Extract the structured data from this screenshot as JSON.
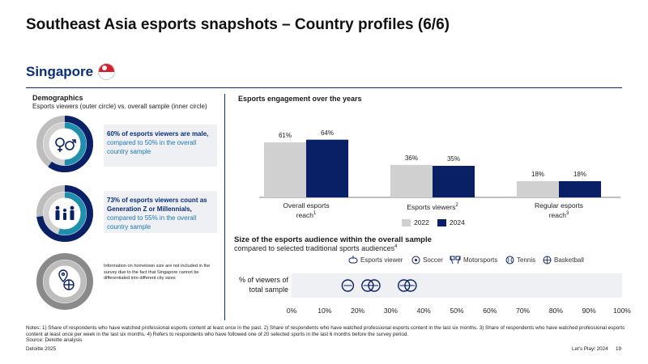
{
  "title": "Southeast Asia esports snapshots – Country profiles (6/6)",
  "country": "Singapore",
  "demographics": {
    "heading": "Demographics",
    "subheading": "Esports viewers (outer circle) vs. overall sample (inner circle)",
    "card1": {
      "bold": "60% of esports viewers are male,",
      "rest": " compared to 50% in the overall country sample",
      "outer": 0.6,
      "inner": 0.5
    },
    "card2": {
      "bold": "73% of esports viewers count as Generation Z or Millennials,",
      "rest": " compared to 55% in the overall country sample",
      "outer": 0.73,
      "inner": 0.55
    },
    "card3": {
      "text": "Information on hometown size are not included in the survey due to the fact that Singapore cannot be differentiated into different city sizes"
    }
  },
  "engagement": {
    "heading": "Esports engagement over the years",
    "chart_data": {
      "type": "bar",
      "categories": [
        "Overall esports reach",
        "Esports viewers",
        "Regular esports reach"
      ],
      "category_sup": [
        "1",
        "2",
        "3"
      ],
      "series": [
        {
          "name": "2022",
          "values": [
            61,
            36,
            18
          ]
        },
        {
          "name": "2024",
          "values": [
            64,
            35,
            18
          ]
        }
      ],
      "value_labels": [
        [
          "61%",
          "36%",
          "18%"
        ],
        [
          "64%",
          "35%",
          "18%"
        ]
      ],
      "ylim": [
        0,
        70
      ],
      "legend": "bottom-center",
      "colors": {
        "2022": "#d0d0d0",
        "2024": "#0a2066"
      }
    }
  },
  "audience": {
    "heading": "Size of the esports audience within the overall sample",
    "subheading": "compared to selected traditional sports audiences",
    "sub_sup": "4",
    "row_label": "% of viewers of total sample",
    "legend": [
      "Esports viewer",
      "Soccer",
      "Motorsports",
      "Tennis",
      "Basketball"
    ],
    "chart_data": {
      "type": "scatter",
      "x_ticks": [
        "0%",
        "10%",
        "20%",
        "30%",
        "40%",
        "50%",
        "60%",
        "70%",
        "80%",
        "90%",
        "100%"
      ],
      "xlim": [
        0,
        100
      ],
      "points": [
        {
          "name": "Tennis",
          "x": 17
        },
        {
          "name": "Motorsports",
          "x": 23
        },
        {
          "name": "Soccer",
          "x": 25
        },
        {
          "name": "Basketball",
          "x": 34
        },
        {
          "name": "Esports viewer",
          "x": 36
        }
      ]
    }
  },
  "notes": "Notes: 1) Share of respondents who have watched professional esports content at least once in the past. 2) Share of respondents who have watched professional esports content in the last six months. 3) Share of respondents who have watched professional esports content at least once per week in the last six months. 4) Refers to respondents who have followed one of 20 selected sports in the last 6 months before the survey period.",
  "source": "Source: Deloitte analysis",
  "footer": {
    "left": "Deloitte 2025",
    "right": "Let's Play! 2024",
    "page": "19"
  },
  "colors": {
    "navy": "#0a2066",
    "teal": "#1f8fb0",
    "grey": "#bdbdbd"
  }
}
